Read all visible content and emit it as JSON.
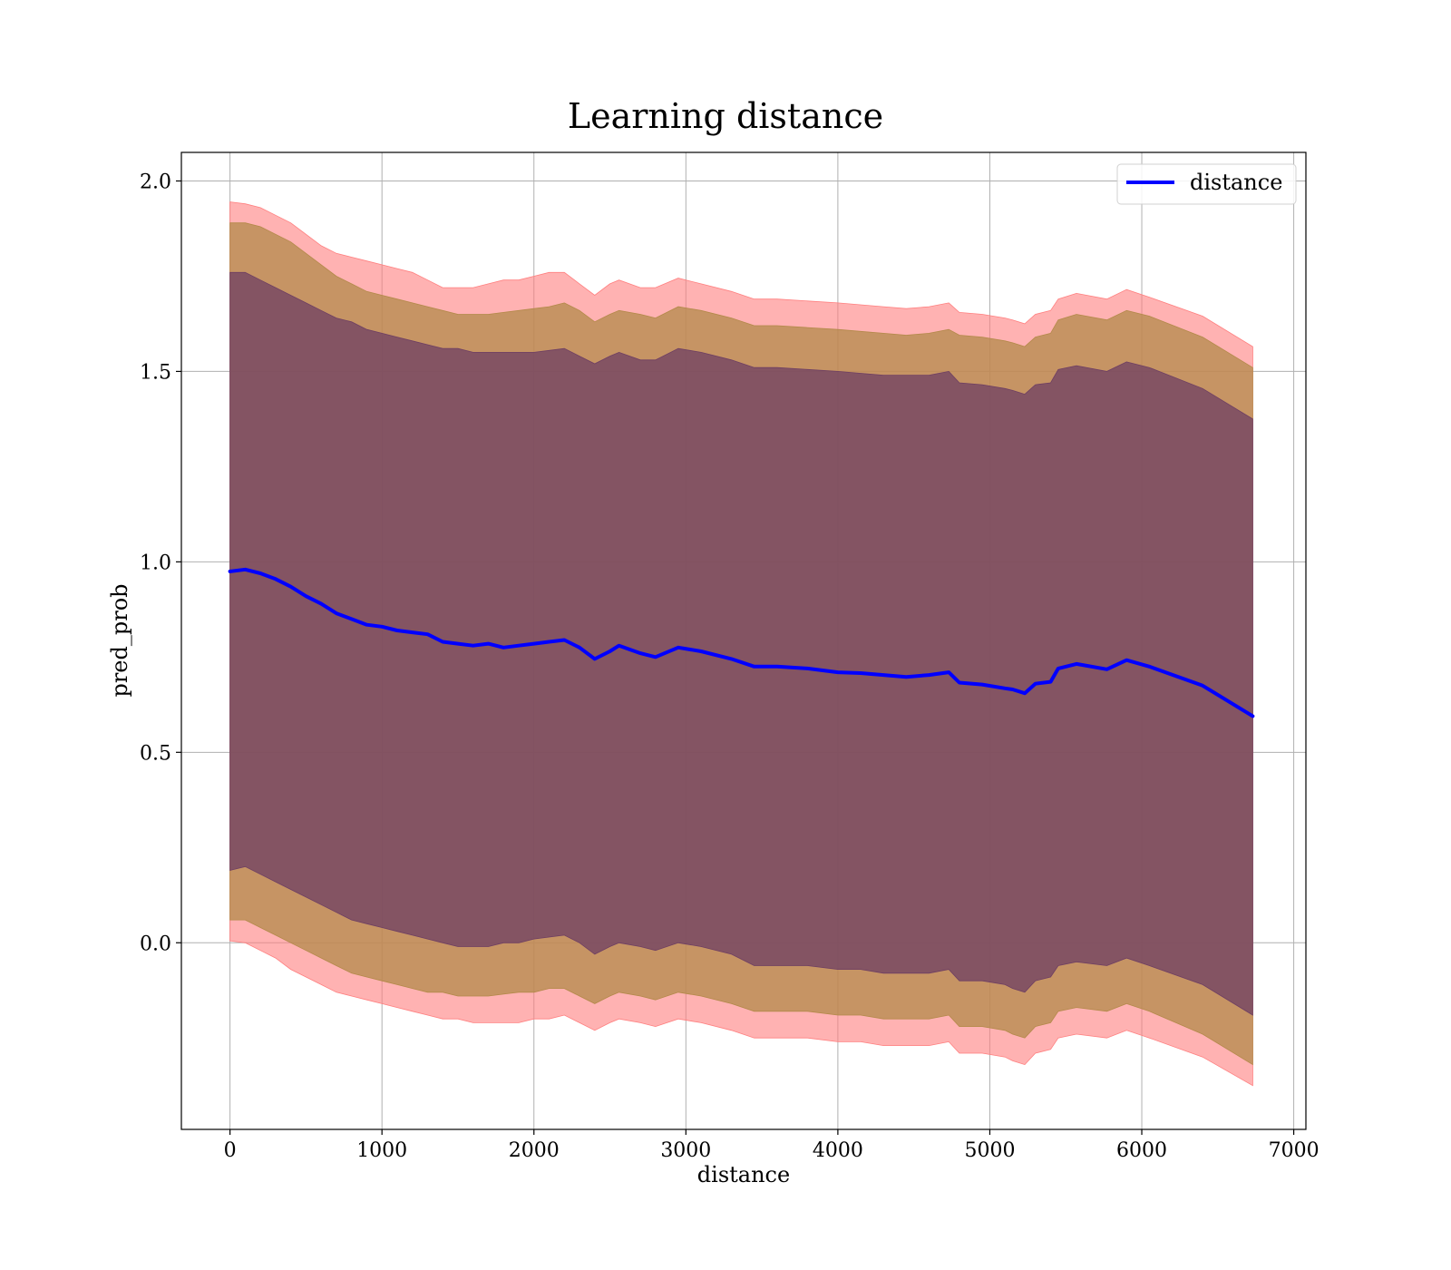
{
  "chart_data": {
    "type": "line",
    "title": "Learning distance",
    "xlabel": "distance",
    "ylabel": "pred_prob",
    "xlim": [
      -320,
      7080
    ],
    "ylim": [
      -0.49,
      2.075
    ],
    "x_ticks": [
      0,
      1000,
      2000,
      3000,
      4000,
      5000,
      6000,
      7000
    ],
    "x_tick_labels": [
      "0",
      "1000",
      "2000",
      "3000",
      "4000",
      "5000",
      "6000",
      "7000"
    ],
    "y_ticks": [
      0.0,
      0.5,
      1.0,
      1.5,
      2.0
    ],
    "y_tick_labels": [
      "0.0",
      "0.5",
      "1.0",
      "1.5",
      "2.0"
    ],
    "grid": true,
    "legend": {
      "position": "top-right",
      "entries": [
        "distance"
      ]
    },
    "colors": {
      "line": "#0000ff",
      "band_outer": "#ff7f7f",
      "band_middle": "#b3894a",
      "band_inner": "#6e3f63",
      "grid": "#b0b0b0"
    },
    "series": [
      {
        "name": "distance",
        "x": [
          0,
          100,
          200,
          300,
          400,
          500,
          600,
          700,
          800,
          900,
          1000,
          1100,
          1200,
          1300,
          1400,
          1500,
          1600,
          1700,
          1800,
          1900,
          2000,
          2100,
          2200,
          2300,
          2400,
          2500,
          2560,
          2700,
          2800,
          2950,
          3100,
          3300,
          3450,
          3600,
          3800,
          4000,
          4150,
          4300,
          4450,
          4600,
          4730,
          4800,
          4950,
          5100,
          5150,
          5230,
          5300,
          5400,
          5450,
          5570,
          5770,
          5900,
          6050,
          6400,
          6730
        ],
        "y": [
          0.975,
          0.98,
          0.97,
          0.955,
          0.935,
          0.91,
          0.89,
          0.865,
          0.85,
          0.835,
          0.83,
          0.82,
          0.815,
          0.81,
          0.79,
          0.785,
          0.78,
          0.785,
          0.775,
          0.78,
          0.785,
          0.79,
          0.795,
          0.775,
          0.745,
          0.765,
          0.78,
          0.76,
          0.75,
          0.775,
          0.765,
          0.745,
          0.725,
          0.725,
          0.72,
          0.71,
          0.708,
          0.703,
          0.698,
          0.703,
          0.71,
          0.683,
          0.678,
          0.668,
          0.665,
          0.655,
          0.68,
          0.685,
          0.72,
          0.732,
          0.718,
          0.742,
          0.725,
          0.675,
          0.595
        ]
      }
    ],
    "bands": [
      {
        "name": "outer",
        "upper": [
          1.945,
          1.94,
          1.93,
          1.91,
          1.89,
          1.86,
          1.83,
          1.81,
          1.8,
          1.79,
          1.78,
          1.77,
          1.76,
          1.74,
          1.72,
          1.72,
          1.72,
          1.73,
          1.74,
          1.74,
          1.75,
          1.76,
          1.76,
          1.73,
          1.7,
          1.73,
          1.74,
          1.72,
          1.72,
          1.745,
          1.73,
          1.71,
          1.69,
          1.69,
          1.685,
          1.68,
          1.675,
          1.67,
          1.665,
          1.67,
          1.68,
          1.655,
          1.65,
          1.64,
          1.635,
          1.625,
          1.65,
          1.66,
          1.69,
          1.705,
          1.69,
          1.715,
          1.695,
          1.645,
          1.565
        ],
        "lower": [
          0.005,
          0.0,
          -0.02,
          -0.04,
          -0.07,
          -0.09,
          -0.11,
          -0.13,
          -0.14,
          -0.15,
          -0.16,
          -0.17,
          -0.18,
          -0.19,
          -0.2,
          -0.2,
          -0.21,
          -0.21,
          -0.21,
          -0.21,
          -0.2,
          -0.2,
          -0.19,
          -0.21,
          -0.23,
          -0.21,
          -0.2,
          -0.21,
          -0.22,
          -0.2,
          -0.21,
          -0.23,
          -0.25,
          -0.25,
          -0.25,
          -0.26,
          -0.26,
          -0.27,
          -0.27,
          -0.27,
          -0.26,
          -0.29,
          -0.29,
          -0.3,
          -0.31,
          -0.32,
          -0.29,
          -0.28,
          -0.25,
          -0.24,
          -0.25,
          -0.23,
          -0.25,
          -0.3,
          -0.375
        ]
      },
      {
        "name": "middle",
        "upper": [
          1.89,
          1.89,
          1.88,
          1.86,
          1.84,
          1.81,
          1.78,
          1.75,
          1.73,
          1.71,
          1.7,
          1.69,
          1.68,
          1.67,
          1.66,
          1.65,
          1.65,
          1.65,
          1.655,
          1.66,
          1.665,
          1.67,
          1.68,
          1.66,
          1.63,
          1.65,
          1.66,
          1.65,
          1.64,
          1.67,
          1.66,
          1.64,
          1.62,
          1.62,
          1.615,
          1.61,
          1.605,
          1.6,
          1.595,
          1.6,
          1.61,
          1.595,
          1.59,
          1.58,
          1.575,
          1.565,
          1.59,
          1.6,
          1.635,
          1.65,
          1.635,
          1.66,
          1.645,
          1.59,
          1.51
        ],
        "lower": [
          0.06,
          0.06,
          0.04,
          0.02,
          0.0,
          -0.02,
          -0.04,
          -0.06,
          -0.08,
          -0.09,
          -0.1,
          -0.11,
          -0.12,
          -0.13,
          -0.13,
          -0.14,
          -0.14,
          -0.14,
          -0.135,
          -0.13,
          -0.13,
          -0.12,
          -0.12,
          -0.14,
          -0.16,
          -0.14,
          -0.13,
          -0.14,
          -0.15,
          -0.13,
          -0.14,
          -0.16,
          -0.18,
          -0.18,
          -0.18,
          -0.19,
          -0.19,
          -0.2,
          -0.2,
          -0.2,
          -0.19,
          -0.22,
          -0.22,
          -0.23,
          -0.24,
          -0.25,
          -0.22,
          -0.21,
          -0.18,
          -0.17,
          -0.18,
          -0.16,
          -0.18,
          -0.24,
          -0.32
        ]
      },
      {
        "name": "inner",
        "upper": [
          1.76,
          1.76,
          1.74,
          1.72,
          1.7,
          1.68,
          1.66,
          1.64,
          1.63,
          1.61,
          1.6,
          1.59,
          1.58,
          1.57,
          1.56,
          1.56,
          1.55,
          1.55,
          1.55,
          1.55,
          1.55,
          1.555,
          1.56,
          1.54,
          1.52,
          1.54,
          1.55,
          1.53,
          1.53,
          1.56,
          1.55,
          1.53,
          1.51,
          1.51,
          1.505,
          1.5,
          1.495,
          1.49,
          1.49,
          1.49,
          1.5,
          1.47,
          1.465,
          1.455,
          1.45,
          1.44,
          1.465,
          1.47,
          1.505,
          1.515,
          1.5,
          1.525,
          1.51,
          1.455,
          1.375
        ],
        "lower": [
          0.19,
          0.2,
          0.18,
          0.16,
          0.14,
          0.12,
          0.1,
          0.08,
          0.06,
          0.05,
          0.04,
          0.03,
          0.02,
          0.01,
          0.0,
          -0.01,
          -0.01,
          -0.01,
          0.0,
          0.0,
          0.01,
          0.015,
          0.02,
          0.0,
          -0.03,
          -0.01,
          0.0,
          -0.01,
          -0.02,
          0.0,
          -0.01,
          -0.03,
          -0.06,
          -0.06,
          -0.06,
          -0.07,
          -0.07,
          -0.08,
          -0.08,
          -0.08,
          -0.07,
          -0.1,
          -0.1,
          -0.11,
          -0.12,
          -0.13,
          -0.1,
          -0.09,
          -0.06,
          -0.05,
          -0.06,
          -0.04,
          -0.06,
          -0.11,
          -0.19
        ]
      }
    ]
  }
}
